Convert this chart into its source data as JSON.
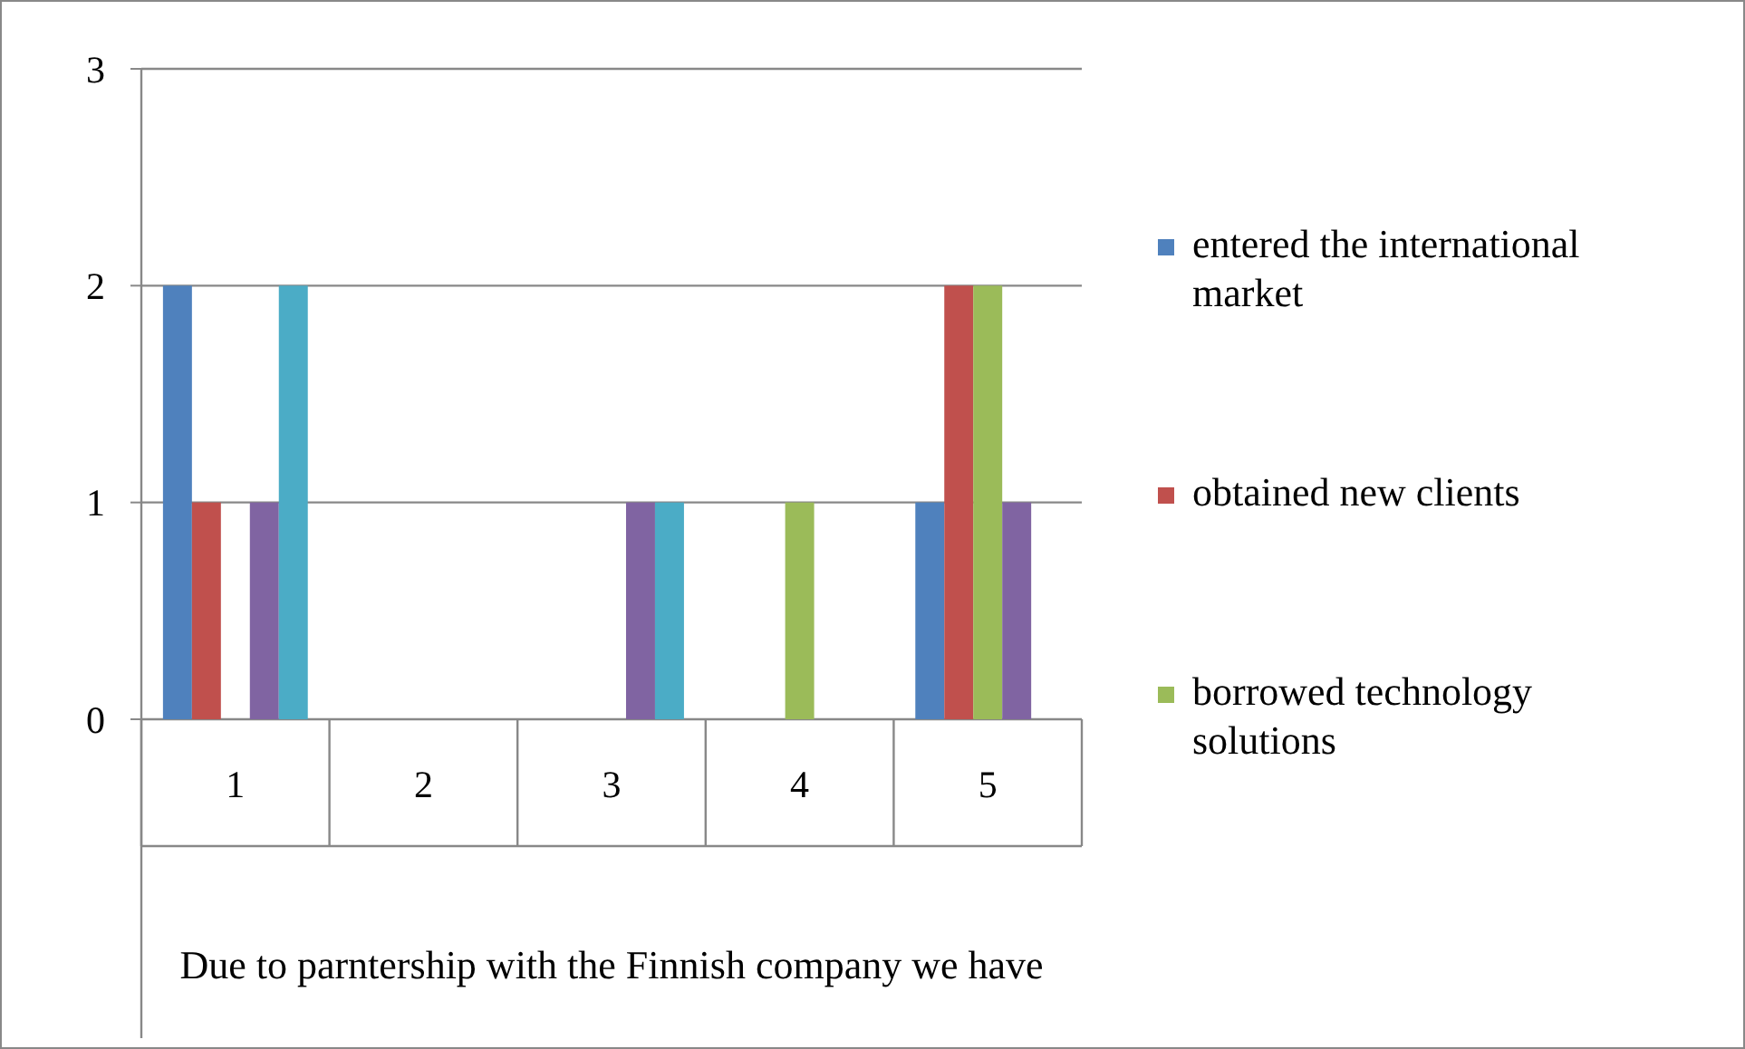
{
  "chart_data": {
    "type": "bar",
    "xlabel": "Due to parntership with the Finnish company we have",
    "categories": [
      "1",
      "2",
      "3",
      "4",
      "5"
    ],
    "series": [
      {
        "name": "entered the international market",
        "color": "#4f81bd",
        "values": [
          2,
          0,
          0,
          0,
          1
        ]
      },
      {
        "name": "obtained new clients",
        "color": "#c0504d",
        "values": [
          1,
          0,
          0,
          0,
          2
        ]
      },
      {
        "name": "borrowed technology solutions",
        "color": "#9bbb59",
        "values": [
          0,
          0,
          0,
          1,
          2
        ]
      },
      {
        "color": "#8064a2",
        "values": [
          1,
          0,
          1,
          0,
          1
        ]
      },
      {
        "color": "#4bacc6",
        "values": [
          2,
          0,
          1,
          0,
          0
        ]
      }
    ],
    "ylim": [
      0,
      3
    ],
    "yticks": [
      0,
      1,
      2,
      3
    ],
    "grid": "y",
    "legend": "right"
  }
}
